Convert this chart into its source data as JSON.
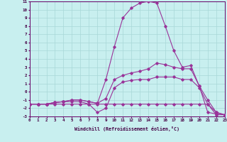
{
  "xlabel": "Windchill (Refroidissement éolien,°C)",
  "xlim": [
    0,
    23
  ],
  "ylim": [
    -3,
    11
  ],
  "yticks": [
    -3,
    -2,
    -1,
    0,
    1,
    2,
    3,
    4,
    5,
    6,
    7,
    8,
    9,
    10,
    11
  ],
  "xticks": [
    0,
    1,
    2,
    3,
    4,
    5,
    6,
    7,
    8,
    9,
    10,
    11,
    12,
    13,
    14,
    15,
    16,
    17,
    18,
    19,
    20,
    21,
    22,
    23
  ],
  "bg_color": "#c8efef",
  "line_color": "#993399",
  "grid_color": "#a8d8d8",
  "curves": [
    {
      "x": [
        0,
        1,
        2,
        3,
        4,
        5,
        6,
        7,
        8,
        9,
        10,
        11,
        12,
        13,
        14,
        15,
        16,
        17,
        18,
        19,
        20,
        21,
        22,
        23
      ],
      "y": [
        -1.5,
        -1.5,
        -1.5,
        -1.5,
        -1.5,
        -1.5,
        -1.5,
        -1.5,
        -1.5,
        -1.5,
        -1.5,
        -1.5,
        -1.5,
        -1.5,
        -1.5,
        -1.5,
        -1.5,
        -1.5,
        -1.5,
        -1.5,
        -1.5,
        -1.5,
        -2.8,
        -2.8
      ]
    },
    {
      "x": [
        0,
        1,
        2,
        3,
        4,
        5,
        6,
        7,
        8,
        9,
        10,
        11,
        12,
        13,
        14,
        15,
        16,
        17,
        18,
        19,
        20,
        21,
        22,
        23
      ],
      "y": [
        -1.5,
        -1.5,
        -1.5,
        -1.3,
        -1.2,
        -1.2,
        -1.2,
        -1.5,
        -2.5,
        -2.0,
        0.5,
        1.2,
        1.4,
        1.5,
        1.5,
        1.8,
        1.8,
        1.8,
        1.5,
        1.5,
        0.5,
        -1.5,
        -2.5,
        -2.8
      ]
    },
    {
      "x": [
        0,
        1,
        2,
        3,
        4,
        5,
        6,
        7,
        8,
        9,
        10,
        11,
        12,
        13,
        14,
        15,
        16,
        17,
        18,
        19,
        20,
        21,
        22,
        23
      ],
      "y": [
        -1.5,
        -1.5,
        -1.5,
        -1.3,
        -1.2,
        -1.0,
        -1.0,
        -1.2,
        -1.4,
        -0.8,
        1.5,
        2.0,
        2.3,
        2.5,
        2.8,
        3.5,
        3.3,
        3.0,
        2.8,
        2.8,
        0.7,
        -1.0,
        -2.5,
        -2.8
      ]
    },
    {
      "x": [
        0,
        1,
        2,
        3,
        4,
        5,
        6,
        7,
        8,
        9,
        10,
        11,
        12,
        13,
        14,
        15,
        16,
        17,
        18,
        19,
        20,
        21,
        22,
        23
      ],
      "y": [
        -1.5,
        -1.5,
        -1.5,
        -1.3,
        -1.2,
        -1.0,
        -1.0,
        -1.2,
        -1.4,
        1.5,
        5.5,
        9.0,
        10.2,
        10.8,
        11.0,
        10.8,
        8.0,
        5.0,
        3.0,
        3.2,
        0.7,
        -2.5,
        -2.7,
        -2.8
      ]
    }
  ]
}
